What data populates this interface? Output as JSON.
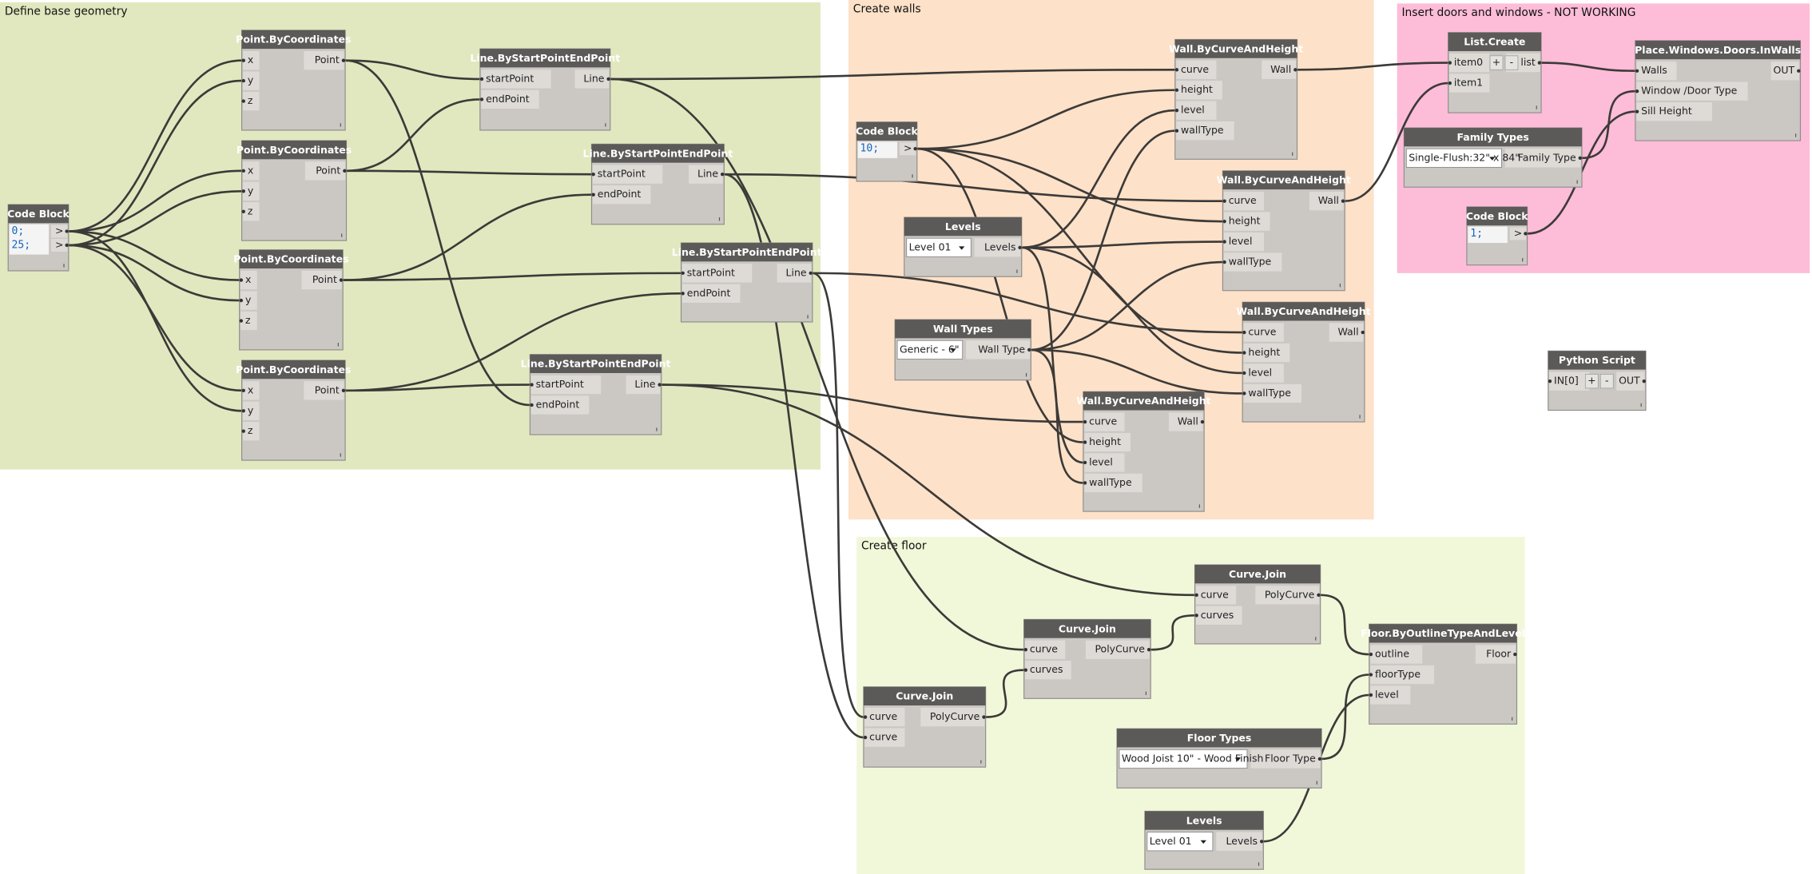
{
  "groups": [
    {
      "title": "Define base geometry"
    },
    {
      "title": "Create walls"
    },
    {
      "title": "Insert doors and windows - NOT WORKING"
    },
    {
      "title": "Create floor"
    }
  ],
  "nodes": [
    {
      "title": "Code Block",
      "code": [
        "0;",
        "25;"
      ],
      "outputs": [
        ">",
        ">"
      ]
    },
    {
      "title": "Point.ByCoordinates",
      "inputs": [
        "x",
        "y",
        "z"
      ],
      "outputs": [
        "Point"
      ]
    },
    {
      "title": "Point.ByCoordinates",
      "inputs": [
        "x",
        "y",
        "z"
      ],
      "outputs": [
        "Point"
      ]
    },
    {
      "title": "Point.ByCoordinates",
      "inputs": [
        "x",
        "y",
        "z"
      ],
      "outputs": [
        "Point"
      ]
    },
    {
      "title": "Point.ByCoordinates",
      "inputs": [
        "x",
        "y",
        "z"
      ],
      "outputs": [
        "Point"
      ]
    },
    {
      "title": "Line.ByStartPointEndPoint",
      "inputs": [
        "startPoint",
        "endPoint"
      ],
      "outputs": [
        "Line"
      ]
    },
    {
      "title": "Line.ByStartPointEndPoint",
      "inputs": [
        "startPoint",
        "endPoint"
      ],
      "outputs": [
        "Line"
      ]
    },
    {
      "title": "Line.ByStartPointEndPoint",
      "inputs": [
        "startPoint",
        "endPoint"
      ],
      "outputs": [
        "Line"
      ]
    },
    {
      "title": "Line.ByStartPointEndPoint",
      "inputs": [
        "startPoint",
        "endPoint"
      ],
      "outputs": [
        "Line"
      ]
    },
    {
      "title": "Code Block",
      "code": [
        "10;"
      ],
      "outputs": [
        ">"
      ]
    },
    {
      "title": "Levels",
      "dropdown": "Level 01",
      "outputs": [
        "Levels"
      ]
    },
    {
      "title": "Wall Types",
      "dropdown": "Generic - 6\"",
      "outputs": [
        "Wall Type"
      ]
    },
    {
      "title": "Wall.ByCurveAndHeight",
      "inputs": [
        "curve",
        "height",
        "level",
        "wallType"
      ],
      "outputs": [
        "Wall"
      ]
    },
    {
      "title": "Wall.ByCurveAndHeight",
      "inputs": [
        "curve",
        "height",
        "level",
        "wallType"
      ],
      "outputs": [
        "Wall"
      ]
    },
    {
      "title": "Wall.ByCurveAndHeight",
      "inputs": [
        "curve",
        "height",
        "level",
        "wallType"
      ],
      "outputs": [
        "Wall"
      ]
    },
    {
      "title": "Wall.ByCurveAndHeight",
      "inputs": [
        "curve",
        "height",
        "level",
        "wallType"
      ],
      "outputs": [
        "Wall"
      ]
    },
    {
      "title": "List.Create",
      "inputs": [
        "item0",
        "item1"
      ],
      "buttons": [
        "+",
        "-"
      ],
      "outputs": [
        "list"
      ]
    },
    {
      "title": "Family Types",
      "dropdown": "Single-Flush:32\" x 84\"",
      "outputs": [
        "Family Type"
      ]
    },
    {
      "title": "Code Block",
      "code": [
        "1;"
      ],
      "outputs": [
        ">"
      ]
    },
    {
      "title": "Place.Windows.Doors.InWalls",
      "inputs": [
        "Walls",
        "Window /Door Type",
        "Sill Height"
      ],
      "outputs": [
        "OUT"
      ]
    },
    {
      "title": "Python Script",
      "inputs": [
        "IN[0]"
      ],
      "buttons": [
        "+",
        "-"
      ],
      "outputs": [
        "OUT"
      ]
    },
    {
      "title": "Curve.Join",
      "inputs": [
        "curve",
        "curves"
      ],
      "outputs": [
        "PolyCurve"
      ]
    },
    {
      "title": "Curve.Join",
      "inputs": [
        "curve",
        "curves"
      ],
      "outputs": [
        "PolyCurve"
      ]
    },
    {
      "title": "Curve.Join",
      "inputs": [
        "curve",
        "curve"
      ],
      "outputs": [
        "PolyCurve"
      ]
    },
    {
      "title": "Floor.ByOutlineTypeAndLevel",
      "inputs": [
        "outline",
        "floorType",
        "level"
      ],
      "outputs": [
        "Floor"
      ]
    },
    {
      "title": "Floor Types",
      "dropdown": "Wood Joist 10\" - Wood Finish",
      "outputs": [
        "Floor Type"
      ]
    },
    {
      "title": "Levels",
      "dropdown": "Level 01",
      "outputs": [
        "Levels"
      ]
    }
  ]
}
